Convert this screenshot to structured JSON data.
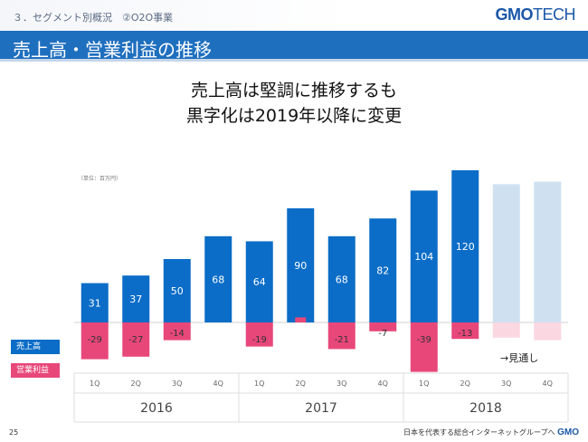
{
  "header": {
    "section": "３．セグメント別概況　②O2O事業",
    "logo_gmo": "GMO",
    "logo_tech": "TECH"
  },
  "title": "売上高・営業利益の推移",
  "headline": [
    "売上高は堅調に推移するも",
    "黒字化は2019年以降に変更"
  ],
  "unit_label": "（単位：百万円）",
  "legend": {
    "sales": "売上高",
    "profit": "営業利益"
  },
  "forecast_label": "→見通し",
  "footer": {
    "page": "25",
    "tagline": "日本を代表する総合インターネットグループへ",
    "logo": "GMO"
  },
  "colors": {
    "sales": "#0b6dc7",
    "profit": "#e8477a",
    "sales_forecast": "#cfe1f1",
    "profit_forecast": "#fbd7e1",
    "title_bar": "#1f6fbf"
  },
  "chart_data": {
    "type": "bar",
    "categories": [
      "1Q",
      "2Q",
      "3Q",
      "4Q",
      "1Q",
      "2Q",
      "3Q",
      "4Q",
      "1Q",
      "2Q",
      "3Q",
      "4Q"
    ],
    "year_groups": [
      {
        "label": "2016",
        "span": 4
      },
      {
        "label": "2017",
        "span": 4
      },
      {
        "label": "2018",
        "span": 4
      }
    ],
    "series": [
      {
        "name": "売上高",
        "values": [
          31,
          37,
          50,
          68,
          64,
          90,
          68,
          82,
          104,
          120,
          109,
          111
        ],
        "labels": [
          "31",
          "37",
          "50",
          "68",
          "64",
          "90",
          "68",
          "82",
          "104",
          "120",
          "",
          ""
        ],
        "forecast": [
          false,
          false,
          false,
          false,
          false,
          false,
          false,
          false,
          false,
          false,
          true,
          true
        ]
      },
      {
        "name": "営業利益",
        "values": [
          -29,
          -27,
          -14,
          0,
          -19,
          4,
          -21,
          -7,
          -39,
          -13,
          -12,
          -14
        ],
        "labels": [
          "-29",
          "-27",
          "-14",
          "",
          "-19",
          "",
          "-21",
          "-7",
          "-39",
          "-13",
          "",
          ""
        ],
        "forecast": [
          false,
          false,
          false,
          false,
          false,
          false,
          false,
          false,
          false,
          false,
          true,
          true
        ]
      }
    ]
  }
}
